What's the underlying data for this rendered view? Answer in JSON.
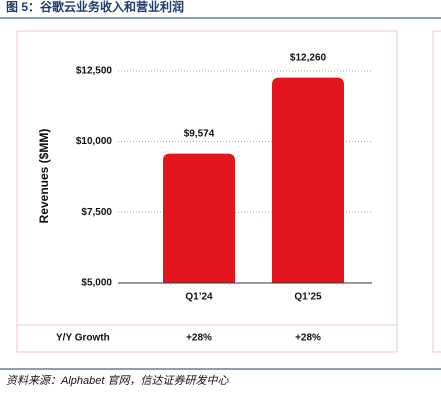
{
  "chart_data": {
    "type": "bar",
    "title": "图 5：谷歌云业务收入和营业利润",
    "ylabel": "Revenues ($MM)",
    "categories": [
      "Q1’24",
      "Q1’25"
    ],
    "values": [
      9574,
      12260
    ],
    "value_labels": [
      "$9,574",
      "$12,260"
    ],
    "color": "#e3141e",
    "ylim": [
      5000,
      13500
    ],
    "yticks": [
      {
        "value": 5000,
        "label": "$5,000"
      },
      {
        "value": 7500,
        "label": "$7,500"
      },
      {
        "value": 10000,
        "label": "$10,000"
      },
      {
        "value": 12500,
        "label": "$12,500"
      }
    ],
    "grid": true,
    "growth_label": "Y/Y Growth",
    "growth": [
      "+28%",
      "+28%"
    ],
    "source": "资料来源：Alphabet 官网，信达证券研发中心"
  }
}
